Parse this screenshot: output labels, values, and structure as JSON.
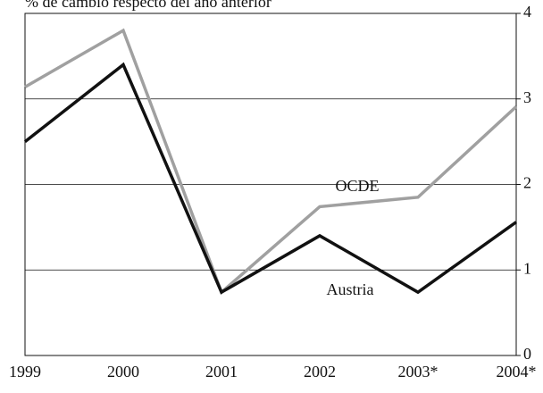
{
  "chart_data": {
    "type": "line",
    "title": "% de cambio respecto del año anterior",
    "categories": [
      "1999",
      "2000",
      "2001",
      "2002",
      "2003*",
      "2004*"
    ],
    "series": [
      {
        "name": "OCDE",
        "color": "#a0a0a0",
        "values": [
          3.14,
          3.8,
          0.74,
          1.74,
          1.85,
          2.91
        ]
      },
      {
        "name": "Austria",
        "color": "#111111",
        "values": [
          2.5,
          3.4,
          0.74,
          1.4,
          0.74,
          1.56
        ]
      }
    ],
    "ylim": [
      0,
      4
    ],
    "yticks": [
      0,
      1,
      2,
      3,
      4
    ],
    "grid": true
  }
}
